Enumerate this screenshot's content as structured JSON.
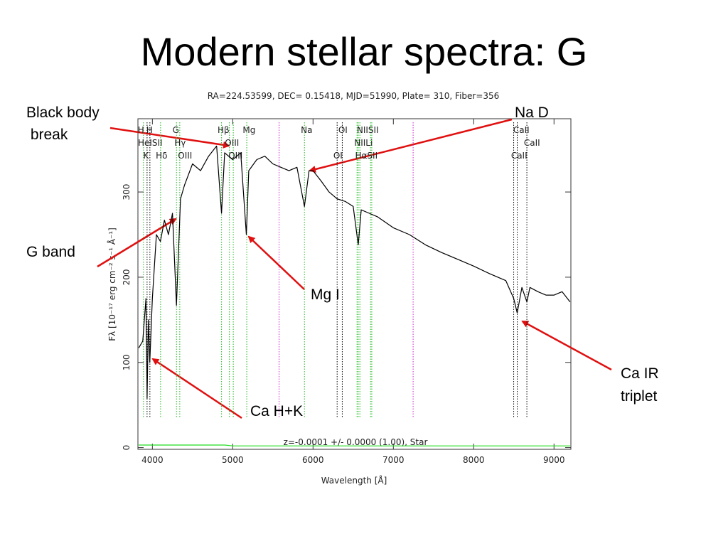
{
  "chart_data": {
    "type": "line",
    "title": "Modern stellar spectra: G",
    "subtitle": "RA=224.53599, DEC= 0.15418, MJD=51990, Plate= 310, Fiber=356",
    "footer": "z=-0.0001 +/- 0.0000 (1.00), Star",
    "x_label": "Wavelength [Å]",
    "y_label": "Fλ [10⁻¹⁷ erg cm⁻² s⁻¹ Å⁻¹]",
    "xlim": [
      3820,
      9210
    ],
    "ylim": [
      -2,
      386
    ],
    "xticks": [
      4000,
      5000,
      6000,
      7000,
      8000,
      9000
    ],
    "yticks": [
      0,
      100,
      200,
      300
    ],
    "x": [
      3830,
      3880,
      3920,
      3934,
      3950,
      3968,
      4000,
      4050,
      4100,
      4150,
      4200,
      4250,
      4300,
      4350,
      4400,
      4500,
      4600,
      4700,
      4800,
      4861,
      4900,
      5000,
      5100,
      5170,
      5200,
      5300,
      5400,
      5500,
      5600,
      5700,
      5800,
      5893,
      5950,
      6000,
      6100,
      6200,
      6300,
      6400,
      6500,
      6563,
      6600,
      6700,
      6800,
      7000,
      7200,
      7400,
      7600,
      7800,
      8000,
      8200,
      8400,
      8498,
      8542,
      8600,
      8662,
      8700,
      8800,
      8900,
      9000,
      9100,
      9200
    ],
    "series": [
      {
        "color": "#000000",
        "values": [
          117,
          125,
          175,
          58,
          150,
          100,
          175,
          250,
          242,
          267,
          250,
          275,
          167,
          292,
          308,
          333,
          325,
          342,
          354,
          275,
          346,
          338,
          346,
          250,
          325,
          338,
          342,
          333,
          329,
          325,
          329,
          283,
          325,
          325,
          313,
          300,
          292,
          289,
          283,
          238,
          279,
          275,
          271,
          258,
          250,
          238,
          229,
          221,
          213,
          204,
          196,
          175,
          158,
          188,
          171,
          188,
          183,
          179,
          179,
          183,
          171
        ]
      },
      {
        "color": "#22dd22",
        "values": [
          3,
          3,
          3,
          3,
          3,
          3,
          3,
          3,
          3,
          3,
          3,
          3,
          3,
          3,
          3,
          3,
          3,
          3,
          3,
          3,
          3,
          2,
          2,
          2,
          2,
          2,
          2,
          2,
          2,
          2,
          2,
          2,
          2,
          2,
          2,
          2,
          2,
          2,
          2,
          2,
          2,
          2,
          2,
          2,
          2,
          2,
          2,
          2,
          2,
          2,
          2,
          2,
          2,
          2,
          2,
          2,
          2,
          2,
          2,
          2,
          2
        ]
      }
    ],
    "lines": [
      {
        "x": 3889,
        "color": "#22bb22"
      },
      {
        "x": 3934,
        "color": "#000000"
      },
      {
        "x": 3969,
        "color": "#000000"
      },
      {
        "x": 4102,
        "color": "#22bb22"
      },
      {
        "x": 4300,
        "color": "#22bb22"
      },
      {
        "x": 4341,
        "color": "#22bb22"
      },
      {
        "x": 4861,
        "color": "#22bb22"
      },
      {
        "x": 4959,
        "color": "#22bb22"
      },
      {
        "x": 5007,
        "color": "#22bb22"
      },
      {
        "x": 5175,
        "color": "#22bb22"
      },
      {
        "x": 5577,
        "color": "#cc22cc"
      },
      {
        "x": 5893,
        "color": "#22bb22"
      },
      {
        "x": 6300,
        "color": "#000000"
      },
      {
        "x": 6364,
        "color": "#000000"
      },
      {
        "x": 6548,
        "color": "#22bb22"
      },
      {
        "x": 6563,
        "color": "#22bb22"
      },
      {
        "x": 6583,
        "color": "#22bb22"
      },
      {
        "x": 6716,
        "color": "#22bb22"
      },
      {
        "x": 6731,
        "color": "#22bb22"
      },
      {
        "x": 7246,
        "color": "#cc22cc"
      },
      {
        "x": 8498,
        "color": "#000000"
      },
      {
        "x": 8542,
        "color": "#000000"
      },
      {
        "x": 8662,
        "color": "#000000"
      }
    ],
    "label_rows": [
      [
        {
          "text": "H",
          "x": 3858
        },
        {
          "text": "H",
          "x": 3965
        },
        {
          "text": "G",
          "x": 4292
        },
        {
          "text": "Hβ",
          "x": 4885
        },
        {
          "text": "Mg",
          "x": 5204
        },
        {
          "text": "Na",
          "x": 5920
        },
        {
          "text": "OI",
          "x": 6372
        },
        {
          "text": "NIISII",
          "x": 6681
        },
        {
          "text": "CaII",
          "x": 8593
        }
      ],
      [
        {
          "text": "HeISII",
          "x": 3973
        },
        {
          "text": "Hγ",
          "x": 4345
        },
        {
          "text": "OIII",
          "x": 4991
        },
        {
          "text": "NIILi",
          "x": 6628
        },
        {
          "text": "CaII",
          "x": 8726
        }
      ],
      [
        {
          "text": "K",
          "x": 3920
        },
        {
          "text": "Hδ",
          "x": 4115
        },
        {
          "text": "OIII",
          "x": 4407
        },
        {
          "text": "OIII",
          "x": 5035
        },
        {
          "text": "OI",
          "x": 6310
        },
        {
          "text": "HαSII",
          "x": 6664
        },
        {
          "text": "CaII",
          "x": 8566
        }
      ]
    ],
    "annotations": [
      [
        "Black body",
        " break"
      ],
      [
        "Na D"
      ],
      [
        "G band"
      ],
      [
        "Mg I"
      ],
      [
        "Ca H+K"
      ],
      [
        "Ca IR",
        "triplet"
      ]
    ]
  }
}
